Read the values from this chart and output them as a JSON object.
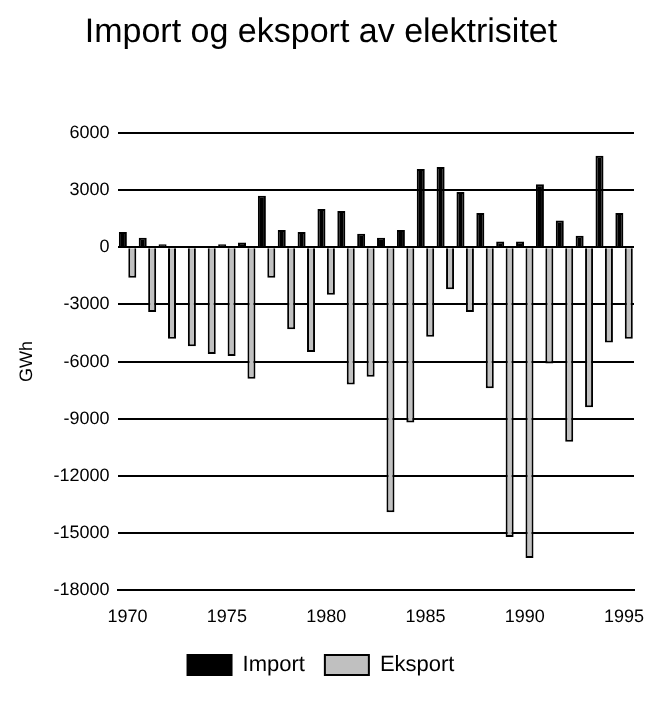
{
  "chart_data": {
    "type": "bar",
    "title": "Import og eksport av elektrisitet",
    "ylabel": "GWh",
    "categories": [
      "1970",
      null,
      null,
      null,
      null,
      "1975",
      null,
      null,
      null,
      null,
      "1980",
      null,
      null,
      null,
      null,
      "1985",
      null,
      null,
      null,
      null,
      "1990",
      null,
      null,
      null,
      null,
      "1995"
    ],
    "series": [
      {
        "name": "Import",
        "color": "#000000",
        "values": [
          800,
          500,
          150,
          0,
          0,
          150,
          250,
          2700,
          900,
          800,
          2000,
          1900,
          700,
          500,
          900,
          4100,
          4200,
          2900,
          1800,
          300,
          300,
          3300,
          1400,
          600,
          4800,
          1800
        ]
      },
      {
        "name": "Eksport",
        "color": "#c0c0c0",
        "values": [
          -1600,
          -3400,
          -4800,
          -5200,
          -5600,
          -5700,
          -6900,
          -1600,
          -4300,
          -5500,
          -2500,
          -7200,
          -6800,
          -13900,
          -9200,
          -4700,
          -2200,
          -3400,
          -7400,
          -15200,
          -16300,
          -6100,
          -10200,
          -8400,
          -5000,
          -4800
        ]
      }
    ],
    "ylim": [
      -18000,
      6000
    ],
    "yticks": [
      6000,
      3000,
      0,
      -3000,
      -6000,
      -9000,
      -12000,
      -15000,
      -18000
    ],
    "grid": "y",
    "legend": "bottom"
  }
}
